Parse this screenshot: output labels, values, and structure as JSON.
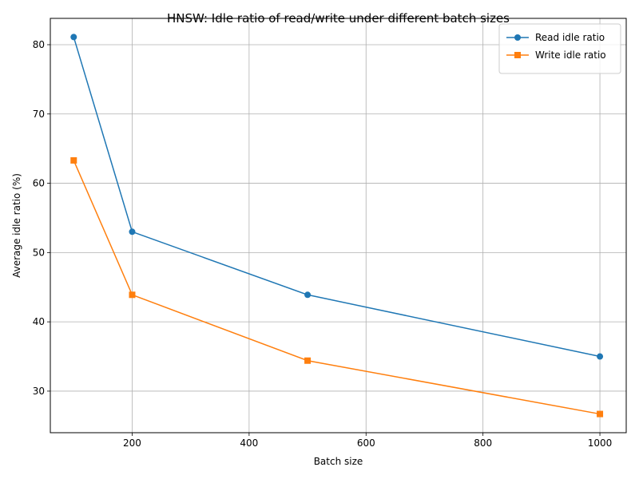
{
  "chart_data": {
    "type": "line",
    "title": "HNSW: Idle ratio of read/write under different batch sizes",
    "xlabel": "Batch size",
    "ylabel": "Average idle ratio (%)",
    "x": [
      100,
      200,
      500,
      1000
    ],
    "series": [
      {
        "name": "Read idle ratio",
        "values": [
          81.1,
          53.0,
          43.9,
          35.0
        ],
        "color": "#1f77b4",
        "marker": "circle"
      },
      {
        "name": "Write idle ratio",
        "values": [
          63.3,
          43.9,
          34.4,
          26.7
        ],
        "color": "#ff7f0e",
        "marker": "square"
      }
    ],
    "xlim": [
      60,
      1045
    ],
    "ylim": [
      24.0,
      83.8
    ],
    "xticks": [
      200,
      400,
      600,
      800,
      1000
    ],
    "yticks": [
      30,
      40,
      50,
      60,
      70,
      80
    ],
    "grid": true,
    "legend_position": "top-right"
  }
}
